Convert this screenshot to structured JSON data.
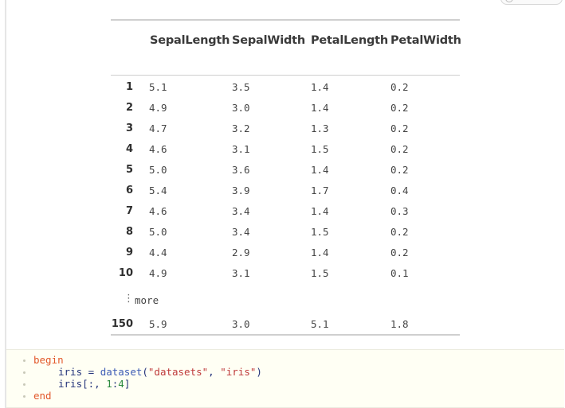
{
  "table": {
    "columns": [
      "SepalLength",
      "SepalWidth",
      "PetalLength",
      "PetalWidth"
    ],
    "rows": [
      {
        "index": "1",
        "values": [
          "5.1",
          "3.5",
          "1.4",
          "0.2"
        ]
      },
      {
        "index": "2",
        "values": [
          "4.9",
          "3.0",
          "1.4",
          "0.2"
        ]
      },
      {
        "index": "3",
        "values": [
          "4.7",
          "3.2",
          "1.3",
          "0.2"
        ]
      },
      {
        "index": "4",
        "values": [
          "4.6",
          "3.1",
          "1.5",
          "0.2"
        ]
      },
      {
        "index": "5",
        "values": [
          "5.0",
          "3.6",
          "1.4",
          "0.2"
        ]
      },
      {
        "index": "6",
        "values": [
          "5.4",
          "3.9",
          "1.7",
          "0.4"
        ]
      },
      {
        "index": "7",
        "values": [
          "4.6",
          "3.4",
          "1.4",
          "0.3"
        ]
      },
      {
        "index": "8",
        "values": [
          "5.0",
          "3.4",
          "1.5",
          "0.2"
        ]
      },
      {
        "index": "9",
        "values": [
          "4.4",
          "2.9",
          "1.4",
          "0.2"
        ]
      },
      {
        "index": "10",
        "values": [
          "4.9",
          "3.1",
          "1.5",
          "0.1"
        ]
      }
    ],
    "more_label": "more",
    "last_row": {
      "index": "150",
      "values": [
        "5.9",
        "3.0",
        "5.1",
        "1.8"
      ]
    }
  },
  "code": {
    "begin_kw": "begin",
    "line1_var": "iris",
    "line1_eq": " = ",
    "line1_fn": "dataset",
    "line1_open": "(",
    "line1_arg1": "\"datasets\"",
    "line1_comma": ", ",
    "line1_arg2": "\"iris\"",
    "line1_close": ")",
    "line2_var": "iris",
    "line2_open": "[:, ",
    "line2_num1": "1",
    "line2_colon": ":",
    "line2_num2": "4",
    "line2_close": "]",
    "end_kw": "end"
  },
  "colors": {
    "keyword": "#e2582a",
    "string": "#bf3a3a",
    "number": "#2b8a3e",
    "code_background": "#fffff4"
  }
}
